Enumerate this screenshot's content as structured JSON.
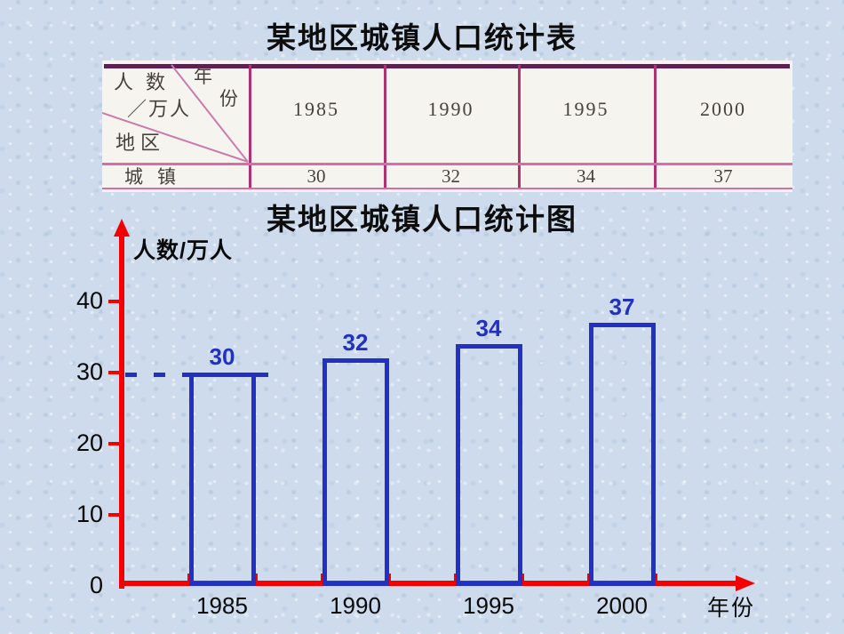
{
  "slide": {
    "table_title": "某地区城镇人口统计表"
  },
  "stat_table": {
    "corner": {
      "col_axis_label": "年份",
      "col_axis_chars": [
        "年",
        "份"
      ],
      "value_axis_label": "人数/万人",
      "value_axis_lines": [
        "人数",
        "／万人"
      ],
      "row_axis_label": "地区"
    },
    "years": [
      "1985",
      "1990",
      "1995",
      "2000"
    ],
    "row_label": "城镇",
    "values": [
      "30",
      "32",
      "34",
      "37"
    ],
    "colors": {
      "top_border": "#5b2153",
      "column_divider": "#b13272",
      "row_divider": "#d66ca9",
      "diagonal_line": "#c97cab",
      "paper": "#f6f4ef",
      "ink": "#47413d"
    }
  },
  "chart_data": {
    "type": "bar",
    "title": "某地区城镇人口统计图",
    "categories": [
      "1985",
      "1990",
      "1995",
      "2000"
    ],
    "values": [
      30,
      32,
      34,
      37
    ],
    "xlabel": "年份",
    "ylabel": "人数/万人",
    "yticks": [
      0,
      10,
      20,
      30,
      40
    ],
    "ylim": [
      0,
      45
    ],
    "grid": false,
    "legend": false,
    "bars_filled": false,
    "dashed_guide_at": 30,
    "colors": {
      "axis": "#f40000",
      "bar_outline": "#2230c4",
      "bar_fill": "transparent",
      "value_label": "#2230c4",
      "tick_label": "#0a0a0a",
      "axis_title": "#0a0a0a",
      "dashed_guide": "#2230c4"
    }
  }
}
